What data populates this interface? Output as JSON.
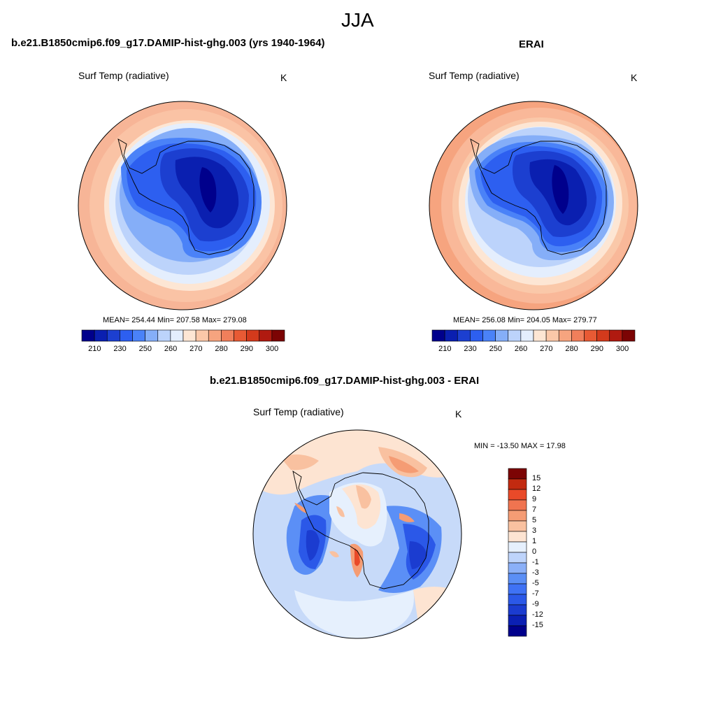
{
  "figure": {
    "title": "JJA"
  },
  "colors": {
    "abs_scale": [
      "#00008c",
      "#0a1fb0",
      "#1c3fd0",
      "#2d5ff0",
      "#4a82f8",
      "#85aef8",
      "#bcd3fb",
      "#e4eefd",
      "#fde6d4",
      "#fbc8a9",
      "#f6a47f",
      "#f07f5b",
      "#e85a34",
      "#d33a1c",
      "#b01a10",
      "#7c0404"
    ],
    "diff_scale": [
      "#00008c",
      "#0b20b4",
      "#1b3cd0",
      "#2b58e8",
      "#3f72f5",
      "#5b8ff6",
      "#8bb0f8",
      "#bed4fb",
      "#e6f0fd",
      "#fde4d2",
      "#f9c1a0",
      "#f59c74",
      "#f07450",
      "#e94a29",
      "#c22a10",
      "#7c0404"
    ],
    "land": "#1a3ac8",
    "ocean_abs": "#fac3a5",
    "ocean_diff": "#c7daf9",
    "coastline": "#000000"
  },
  "panels": [
    {
      "id": "model",
      "title": "b.e21.B1850cmip6.f09_g17.DAMIP-hist-ghg.003 (yrs 1940-1964)",
      "variable": "Surf Temp (radiative)",
      "units": "K",
      "stats": "MEAN= 254.44  Min= 207.58  Max= 279.08",
      "colorbar_ticks": [
        "210",
        "230",
        "250",
        "260",
        "270",
        "280",
        "290",
        "300"
      ],
      "colorbar_levels": 16
    },
    {
      "id": "obs",
      "title": "ERAI",
      "variable": "Surf Temp (radiative)",
      "units": "K",
      "stats": "MEAN= 256.08  Min= 204.05  Max= 279.77",
      "colorbar_ticks": [
        "210",
        "230",
        "250",
        "260",
        "270",
        "280",
        "290",
        "300"
      ],
      "colorbar_levels": 16
    },
    {
      "id": "diff",
      "title": "b.e21.B1850cmip6.f09_g17.DAMIP-hist-ghg.003 - ERAI",
      "variable": "Surf Temp (radiative)",
      "units": "K",
      "stats": "MIN = -13.50 MAX =  17.98",
      "colorbar_ticks": [
        "15",
        "12",
        "9",
        "7",
        "5",
        "3",
        "1",
        "0",
        "-1",
        "-3",
        "-5",
        "-7",
        "-9",
        "-12",
        "-15"
      ],
      "colorbar_levels": 16
    }
  ]
}
